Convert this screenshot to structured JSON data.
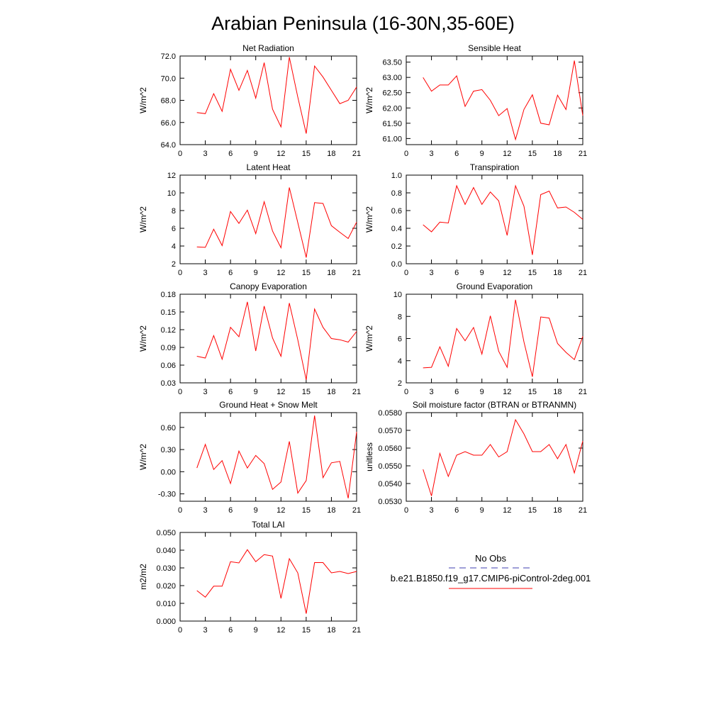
{
  "title": "Arabian Peninsula (16-30N,35-60E)",
  "legend": {
    "obs_label": "No Obs",
    "obs_color": "#3f3fb0",
    "model_label": "b.e21.B1850.f19_g17.CMIP6-piControl-2deg.001",
    "model_color": "#ff0000"
  },
  "chart_data": [
    {
      "type": "line",
      "title": "Net Radiation",
      "ylabel": "W/m^2",
      "xlim": [
        0,
        21
      ],
      "xticks": [
        0,
        3,
        6,
        9,
        12,
        15,
        18,
        21
      ],
      "ylim": [
        64.0,
        72.0
      ],
      "yticks": [
        "64.0",
        "66.0",
        "68.0",
        "70.0",
        "72.0"
      ],
      "series": [
        {
          "x": [
            2,
            3,
            4,
            5,
            6,
            7,
            8,
            9,
            10,
            11,
            12,
            13,
            14,
            15,
            16,
            17,
            18,
            19,
            20,
            21
          ],
          "values": [
            66.9,
            66.8,
            68.6,
            67.0,
            70.8,
            68.9,
            70.7,
            68.2,
            71.4,
            67.2,
            65.6,
            71.9,
            68.3,
            65.0,
            71.1,
            70.1,
            68.9,
            67.7,
            68.0,
            69.2
          ]
        }
      ]
    },
    {
      "type": "line",
      "title": "Sensible Heat",
      "ylabel": "W/m^2",
      "xlim": [
        0,
        21
      ],
      "xticks": [
        0,
        3,
        6,
        9,
        12,
        15,
        18,
        21
      ],
      "ylim": [
        60.8,
        63.7
      ],
      "yticks": [
        "61.00",
        "61.50",
        "62.00",
        "62.50",
        "63.00",
        "63.50"
      ],
      "series": [
        {
          "x": [
            2,
            3,
            4,
            5,
            6,
            7,
            8,
            9,
            10,
            11,
            12,
            13,
            14,
            15,
            16,
            17,
            18,
            19,
            20,
            21
          ],
          "values": [
            63.0,
            62.55,
            62.75,
            62.75,
            63.05,
            62.05,
            62.55,
            62.6,
            62.25,
            61.75,
            61.98,
            60.97,
            61.95,
            62.43,
            61.5,
            61.45,
            62.42,
            61.95,
            63.55,
            61.75
          ]
        }
      ]
    },
    {
      "type": "line",
      "title": "Latent Heat",
      "ylabel": "W/m^2",
      "xlim": [
        0,
        21
      ],
      "xticks": [
        0,
        3,
        6,
        9,
        12,
        15,
        18,
        21
      ],
      "ylim": [
        2,
        12
      ],
      "yticks": [
        "2",
        "4",
        "6",
        "8",
        "10",
        "12"
      ],
      "series": [
        {
          "x": [
            2,
            3,
            4,
            5,
            6,
            7,
            8,
            9,
            10,
            11,
            12,
            13,
            14,
            15,
            16,
            17,
            18,
            19,
            20,
            21
          ],
          "values": [
            3.9,
            3.85,
            5.9,
            4.05,
            7.9,
            6.55,
            8.05,
            5.4,
            9.0,
            5.7,
            3.8,
            10.6,
            6.65,
            2.7,
            8.9,
            8.8,
            6.3,
            5.55,
            4.85,
            6.7
          ]
        }
      ]
    },
    {
      "type": "line",
      "title": "Transpiration",
      "ylabel": "W/m^2",
      "xlim": [
        0,
        21
      ],
      "xticks": [
        0,
        3,
        6,
        9,
        12,
        15,
        18,
        21
      ],
      "ylim": [
        0.0,
        1.0
      ],
      "yticks": [
        "0.0",
        "0.2",
        "0.4",
        "0.6",
        "0.8",
        "1.0"
      ],
      "series": [
        {
          "x": [
            2,
            3,
            4,
            5,
            6,
            7,
            8,
            9,
            10,
            11,
            12,
            13,
            14,
            15,
            16,
            17,
            18,
            19,
            20,
            21
          ],
          "values": [
            0.44,
            0.36,
            0.47,
            0.46,
            0.88,
            0.67,
            0.86,
            0.67,
            0.81,
            0.71,
            0.32,
            0.88,
            0.65,
            0.1,
            0.78,
            0.82,
            0.63,
            0.64,
            0.58,
            0.5
          ]
        }
      ]
    },
    {
      "type": "line",
      "title": "Canopy Evaporation",
      "ylabel": "W/m^2",
      "xlim": [
        0,
        21
      ],
      "xticks": [
        0,
        3,
        6,
        9,
        12,
        15,
        18,
        21
      ],
      "ylim": [
        0.03,
        0.18
      ],
      "yticks": [
        "0.03",
        "0.06",
        "0.09",
        "0.12",
        "0.15",
        "0.18"
      ],
      "series": [
        {
          "x": [
            2,
            3,
            4,
            5,
            6,
            7,
            8,
            9,
            10,
            11,
            12,
            13,
            14,
            15,
            16,
            17,
            18,
            19,
            20,
            21
          ],
          "values": [
            0.075,
            0.072,
            0.11,
            0.07,
            0.124,
            0.108,
            0.167,
            0.084,
            0.16,
            0.106,
            0.075,
            0.165,
            0.103,
            0.035,
            0.155,
            0.124,
            0.105,
            0.103,
            0.099,
            0.117
          ]
        }
      ]
    },
    {
      "type": "line",
      "title": "Ground Evaporation",
      "ylabel": "W/m^2",
      "xlim": [
        0,
        21
      ],
      "xticks": [
        0,
        3,
        6,
        9,
        12,
        15,
        18,
        21
      ],
      "ylim": [
        2,
        10
      ],
      "yticks": [
        "2",
        "4",
        "6",
        "8",
        "10"
      ],
      "series": [
        {
          "x": [
            2,
            3,
            4,
            5,
            6,
            7,
            8,
            9,
            10,
            11,
            12,
            13,
            14,
            15,
            16,
            17,
            18,
            19,
            20,
            21
          ],
          "values": [
            3.35,
            3.4,
            5.25,
            3.5,
            6.9,
            5.8,
            7.0,
            4.6,
            8.05,
            4.85,
            3.4,
            9.5,
            5.7,
            2.55,
            7.95,
            7.85,
            5.55,
            4.75,
            4.1,
            6.2
          ]
        }
      ]
    },
    {
      "type": "line",
      "title": "Ground Heat + Snow Melt",
      "ylabel": "W/m^2",
      "xlim": [
        0,
        21
      ],
      "xticks": [
        0,
        3,
        6,
        9,
        12,
        15,
        18,
        21
      ],
      "ylim": [
        -0.4,
        0.8
      ],
      "yticks": [
        "-0.30",
        "0.00",
        "0.30",
        "0.60"
      ],
      "series": [
        {
          "x": [
            2,
            3,
            4,
            5,
            6,
            7,
            8,
            9,
            10,
            11,
            12,
            13,
            14,
            15,
            16,
            17,
            18,
            19,
            20,
            21
          ],
          "values": [
            0.05,
            0.37,
            0.03,
            0.15,
            -0.16,
            0.28,
            0.05,
            0.22,
            0.11,
            -0.24,
            -0.14,
            0.41,
            -0.29,
            -0.12,
            0.76,
            -0.08,
            0.12,
            0.14,
            -0.36,
            0.54
          ]
        }
      ]
    },
    {
      "type": "line",
      "title": "Soil moisture factor (BTRAN or BTRANMN)",
      "ylabel": "unitless",
      "xlim": [
        0,
        21
      ],
      "xticks": [
        0,
        3,
        6,
        9,
        12,
        15,
        18,
        21
      ],
      "ylim": [
        0.053,
        0.058
      ],
      "yticks": [
        "0.0530",
        "0.0540",
        "0.0550",
        "0.0560",
        "0.0570",
        "0.0580"
      ],
      "series": [
        {
          "x": [
            2,
            3,
            4,
            5,
            6,
            7,
            8,
            9,
            10,
            11,
            12,
            13,
            14,
            15,
            16,
            17,
            18,
            19,
            20,
            21
          ],
          "values": [
            0.0548,
            0.0533,
            0.0557,
            0.0544,
            0.0556,
            0.0558,
            0.0556,
            0.0556,
            0.0562,
            0.0555,
            0.0558,
            0.0576,
            0.0568,
            0.0558,
            0.0558,
            0.0562,
            0.0554,
            0.0562,
            0.0546,
            0.0564
          ]
        }
      ]
    },
    {
      "type": "line",
      "title": "Total LAI",
      "ylabel": "m2/m2",
      "xlim": [
        0,
        21
      ],
      "xticks": [
        0,
        3,
        6,
        9,
        12,
        15,
        18,
        21
      ],
      "ylim": [
        0.0,
        0.05
      ],
      "yticks": [
        "0.000",
        "0.010",
        "0.020",
        "0.030",
        "0.040",
        "0.050"
      ],
      "series": [
        {
          "x": [
            2,
            3,
            4,
            5,
            6,
            7,
            8,
            9,
            10,
            11,
            12,
            13,
            14,
            15,
            16,
            17,
            18,
            19,
            20,
            21
          ],
          "values": [
            0.0172,
            0.0135,
            0.0197,
            0.0197,
            0.0335,
            0.0328,
            0.0403,
            0.0335,
            0.0375,
            0.0367,
            0.0128,
            0.0352,
            0.0272,
            0.0042,
            0.033,
            0.033,
            0.0272,
            0.028,
            0.0268,
            0.028
          ]
        }
      ]
    }
  ]
}
